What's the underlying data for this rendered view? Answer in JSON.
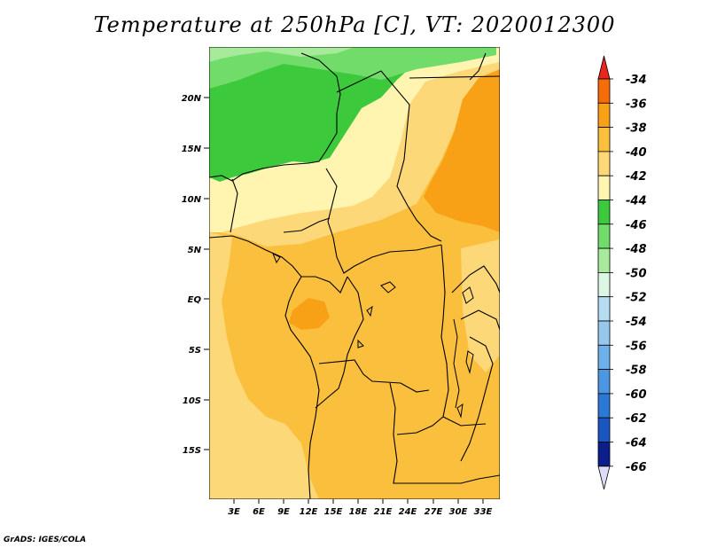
{
  "title": "Temperature at 250hPa [C], VT: 2020012300",
  "credit": "GrADS: IGES/COLA",
  "map": {
    "lat_labels": [
      "20N",
      "15N",
      "10N",
      "5N",
      "EQ",
      "5S",
      "10S",
      "15S"
    ],
    "lon_labels": [
      "3E",
      "6E",
      "9E",
      "12E",
      "15E",
      "18E",
      "21E",
      "24E",
      "27E",
      "30E",
      "33E"
    ]
  },
  "colorbar": {
    "labels": [
      "-34",
      "-36",
      "-38",
      "-40",
      "-42",
      "-44",
      "-46",
      "-48",
      "-50",
      "-52",
      "-54",
      "-56",
      "-58",
      "-60",
      "-62",
      "-64",
      "-66"
    ],
    "colors": [
      "#e8261f",
      "#f56c0a",
      "#f8a117",
      "#fbbf3e",
      "#fdd878",
      "#fff4b0",
      "#3cc93c",
      "#72dc6a",
      "#a8ea9c",
      "#dcf6e4",
      "#b6dcf2",
      "#96c8ee",
      "#6eb0ea",
      "#4c96e2",
      "#2c78d6",
      "#1a56c0",
      "#0c1e8a",
      "#dcdcf5"
    ]
  }
}
